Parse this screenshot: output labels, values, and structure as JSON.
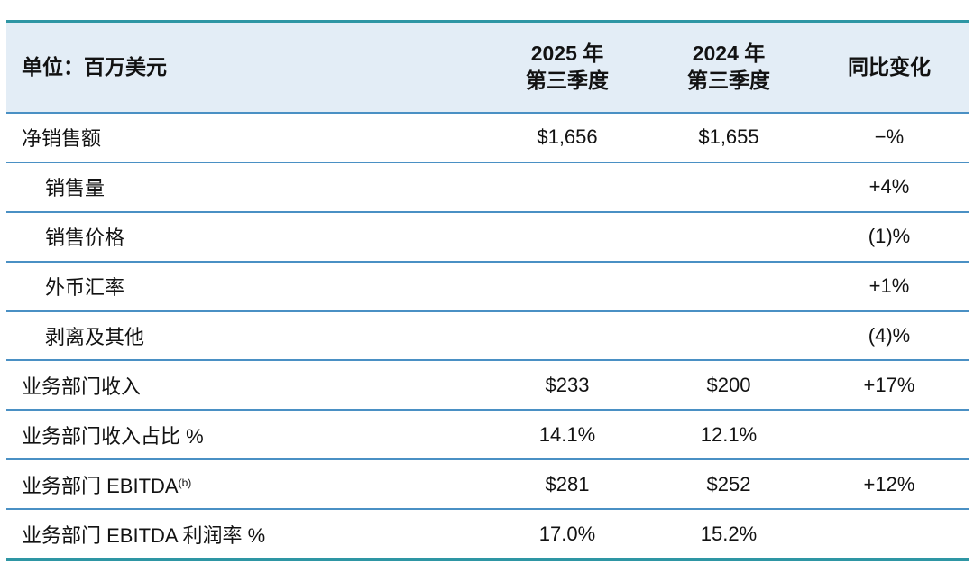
{
  "chart_data": {
    "type": "table",
    "header": {
      "unit_label": "单位：百万美元",
      "col_2025_line1": "2025 年",
      "col_2025_line2": "第三季度",
      "col_2024_line1": "2024 年",
      "col_2024_line2": "第三季度",
      "col_yoy": "同比变化"
    },
    "rows": [
      {
        "label": "净销售额",
        "indent": false,
        "q3_2025": "$1,656",
        "q3_2024": "$1,655",
        "yoy": "−%"
      },
      {
        "label": "销售量",
        "indent": true,
        "q3_2025": "",
        "q3_2024": "",
        "yoy": "+4%"
      },
      {
        "label": "销售价格",
        "indent": true,
        "q3_2025": "",
        "q3_2024": "",
        "yoy": "(1)%"
      },
      {
        "label": "外币汇率",
        "indent": true,
        "q3_2025": "",
        "q3_2024": "",
        "yoy": "+1%"
      },
      {
        "label": "剥离及其他",
        "indent": true,
        "q3_2025": "",
        "q3_2024": "",
        "yoy": "(4)%"
      },
      {
        "label": "业务部门收入",
        "indent": false,
        "q3_2025": "$233",
        "q3_2024": "$200",
        "yoy": "+17%"
      },
      {
        "label": "业务部门收入占比 %",
        "indent": false,
        "q3_2025": "14.1%",
        "q3_2024": "12.1%",
        "yoy": ""
      },
      {
        "label": "业务部门 EBITDA",
        "label_sup": "(b)",
        "indent": false,
        "q3_2025": "$281",
        "q3_2024": "$252",
        "yoy": "+12%"
      },
      {
        "label": "业务部门 EBITDA 利润率 %",
        "indent": false,
        "q3_2025": "17.0%",
        "q3_2024": "15.2%",
        "yoy": ""
      }
    ],
    "colors": {
      "thick_rule": "#2E96A4",
      "row_divider": "#4A90C4",
      "header_background": "#E3EDF6",
      "text": "#121212"
    }
  }
}
